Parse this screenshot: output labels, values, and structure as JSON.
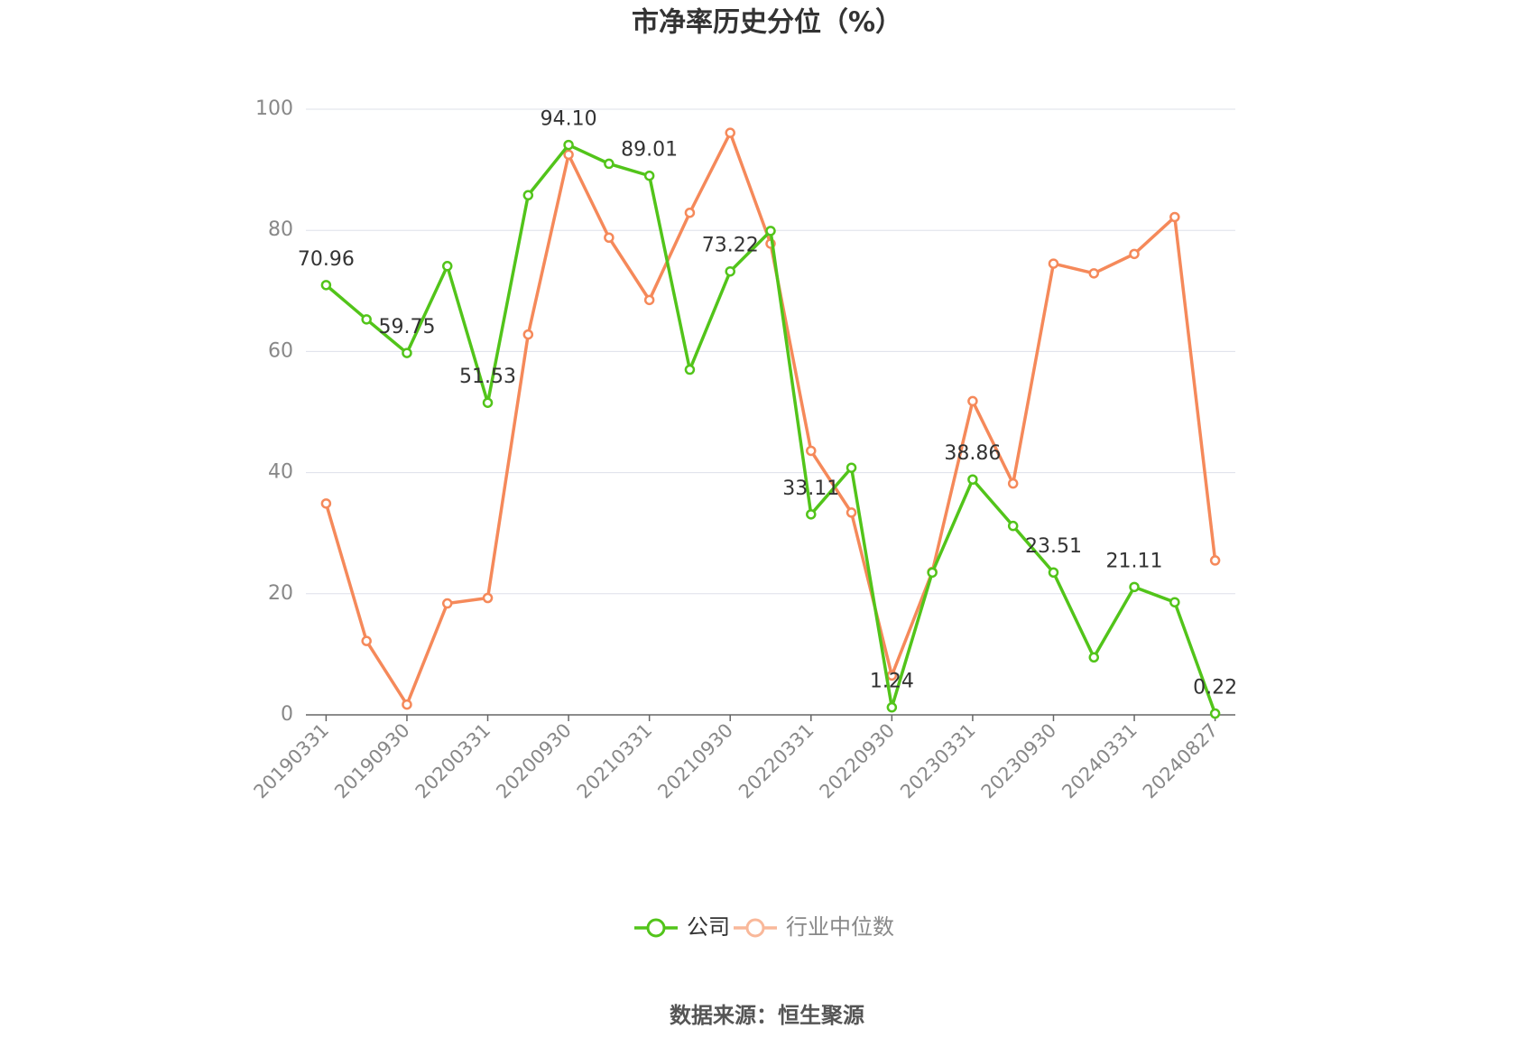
{
  "chart_data": {
    "type": "line",
    "title": "市净率历史分位（%）",
    "source": "数据来源：恒生聚源",
    "categories": [
      "20190331",
      null,
      "20190930",
      null,
      "20200331",
      null,
      "20200930",
      null,
      "20210331",
      null,
      "20210930",
      null,
      "20220331",
      null,
      "20220930",
      null,
      "20230331",
      null,
      "20230930",
      null,
      "20240331",
      null,
      "20240827"
    ],
    "series": [
      {
        "name": "公司",
        "color": "#52c41a",
        "values": [
          70.96,
          65.3,
          59.75,
          74.1,
          51.53,
          85.8,
          94.1,
          91.0,
          89.01,
          57.0,
          73.22,
          79.9,
          33.11,
          40.8,
          1.24,
          23.5,
          38.86,
          31.2,
          23.51,
          9.5,
          21.11,
          18.6,
          0.22
        ],
        "value_labels": [
          "70.96",
          null,
          "59.75",
          null,
          "51.53",
          null,
          "94.10",
          null,
          "89.01",
          null,
          "73.22",
          null,
          "33.11",
          null,
          "1.24",
          null,
          "38.86",
          null,
          "23.51",
          null,
          "21.11",
          null,
          "0.22"
        ]
      },
      {
        "name": "行业中位数",
        "color": "#f5895a",
        "values": [
          34.9,
          12.2,
          1.7,
          18.4,
          19.3,
          62.8,
          92.5,
          78.8,
          68.5,
          82.9,
          96.1,
          77.8,
          43.6,
          33.4,
          6.5,
          23.6,
          51.8,
          38.2,
          74.5,
          72.9,
          76.1,
          82.2,
          25.5
        ]
      }
    ],
    "ylim": [
      0,
      100
    ],
    "yticks": [
      0,
      20,
      40,
      60,
      80,
      100
    ],
    "grid": true,
    "legend": "bottom"
  }
}
